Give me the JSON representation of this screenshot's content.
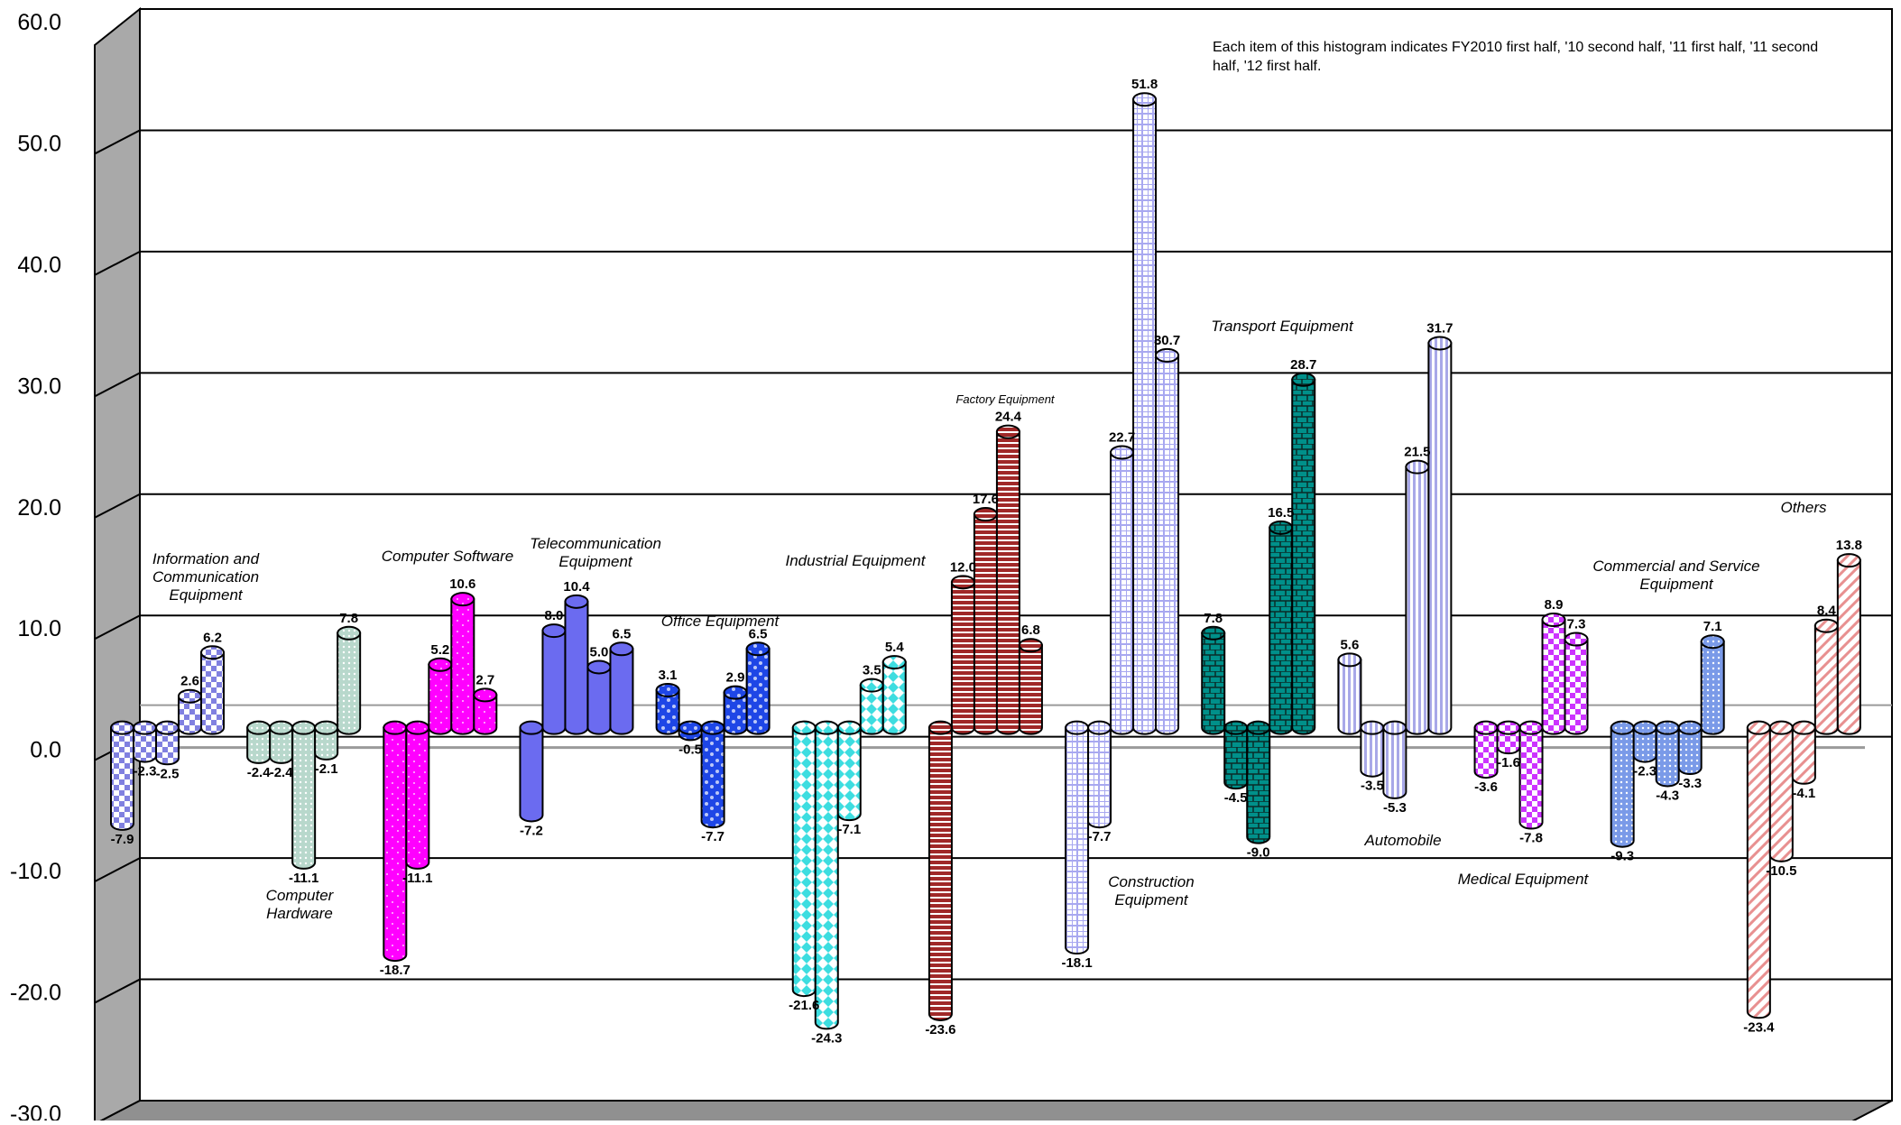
{
  "chart_data": {
    "type": "bar",
    "note": "Each item of this histogram indicates FY2010 first half, '10 second half, '11 first half, '11 second half, '12 first half.",
    "ylim": [
      -30,
      60
    ],
    "yticks": [
      {
        "value": 60,
        "label": "60.0"
      },
      {
        "value": 50,
        "label": "50.0"
      },
      {
        "value": 40,
        "label": "40.0"
      },
      {
        "value": 30,
        "label": "30.0"
      },
      {
        "value": 20,
        "label": "20.0"
      },
      {
        "value": 10,
        "label": "10.0"
      },
      {
        "value": 0,
        "label": "0.0"
      },
      {
        "value": -10,
        "label": "-10.0"
      },
      {
        "value": -20,
        "label": "-20.0"
      },
      {
        "value": -30,
        "label": "-30.0"
      }
    ],
    "grid": true,
    "legend": "none",
    "categories": [
      {
        "name": "Information and Communication Equipment",
        "lines": [
          "Information and",
          "Communication",
          "Equipment"
        ],
        "values": [
          -7.9,
          -2.3,
          -2.5,
          2.6,
          6.2
        ],
        "color": "#8080e0",
        "pattern": "check"
      },
      {
        "name": "Computer Hardware",
        "lines": [
          "Computer",
          "Hardware"
        ],
        "values": [
          -2.4,
          -2.4,
          -11.1,
          -2.1,
          7.8
        ],
        "color": "#b8d8cc",
        "pattern": "dots"
      },
      {
        "name": "Computer Software",
        "lines": [
          "Computer Software"
        ],
        "values": [
          -18.7,
          -11.1,
          5.2,
          10.6,
          2.7
        ],
        "color": "#ff00ff",
        "pattern": "sparkle"
      },
      {
        "name": "Telecommunication Equipment",
        "lines": [
          "Telecommunication",
          "Equipment"
        ],
        "values": [
          -7.2,
          8.0,
          10.4,
          5.0,
          6.5
        ],
        "color": "#6b6bf0",
        "pattern": "solid"
      },
      {
        "name": "Office Equipment",
        "lines": [
          "Office Equipment"
        ],
        "values": [
          3.1,
          -0.5,
          -7.7,
          2.9,
          6.5
        ],
        "color": "#1e46e6",
        "pattern": "bubbles"
      },
      {
        "name": "Industrial Equipment",
        "lines": [
          "Industrial Equipment"
        ],
        "values": [
          -21.6,
          -24.3,
          -7.1,
          3.5,
          5.4
        ],
        "color": "#3ddde0",
        "pattern": "diamond"
      },
      {
        "name": "Factory Equipment",
        "lines": [
          "Factory Equipment"
        ],
        "values": [
          -23.6,
          12.0,
          17.6,
          24.4,
          6.8
        ],
        "color": "#a02828",
        "pattern": "hstripes"
      },
      {
        "name": "Construction Equipment",
        "lines": [
          "Construction",
          "Equipment"
        ],
        "values": [
          -18.1,
          -7.7,
          22.7,
          51.8,
          30.7
        ],
        "color": "#a8a8f0",
        "pattern": "grid"
      },
      {
        "name": "Transport Equipment",
        "lines": [
          "Transport Equipment"
        ],
        "values": [
          7.8,
          -4.5,
          -9.0,
          16.5,
          28.7
        ],
        "color": "#00908a",
        "pattern": "brick"
      },
      {
        "name": "Automobile",
        "lines": [
          "Automobile"
        ],
        "values": [
          5.6,
          -3.5,
          -5.3,
          21.5,
          31.7
        ],
        "color": "#a8a8e8",
        "pattern": "vstripes"
      },
      {
        "name": "Medical Equipment",
        "lines": [
          "Medical Equipment"
        ],
        "values": [
          -3.6,
          -1.6,
          -7.8,
          8.9,
          7.3
        ],
        "color": "#cc33ff",
        "pattern": "check"
      },
      {
        "name": "Commercial and Service Equipment",
        "lines": [
          "Commercial and Service",
          "Equipment"
        ],
        "values": [
          -9.3,
          -2.3,
          -4.3,
          -3.3,
          7.1
        ],
        "color": "#7a9ae8",
        "pattern": "dots"
      },
      {
        "name": "Others",
        "lines": [
          "Others"
        ],
        "values": [
          -23.4,
          -10.5,
          -4.1,
          8.4,
          13.8
        ],
        "color": "#e89090",
        "pattern": "diag"
      }
    ]
  }
}
